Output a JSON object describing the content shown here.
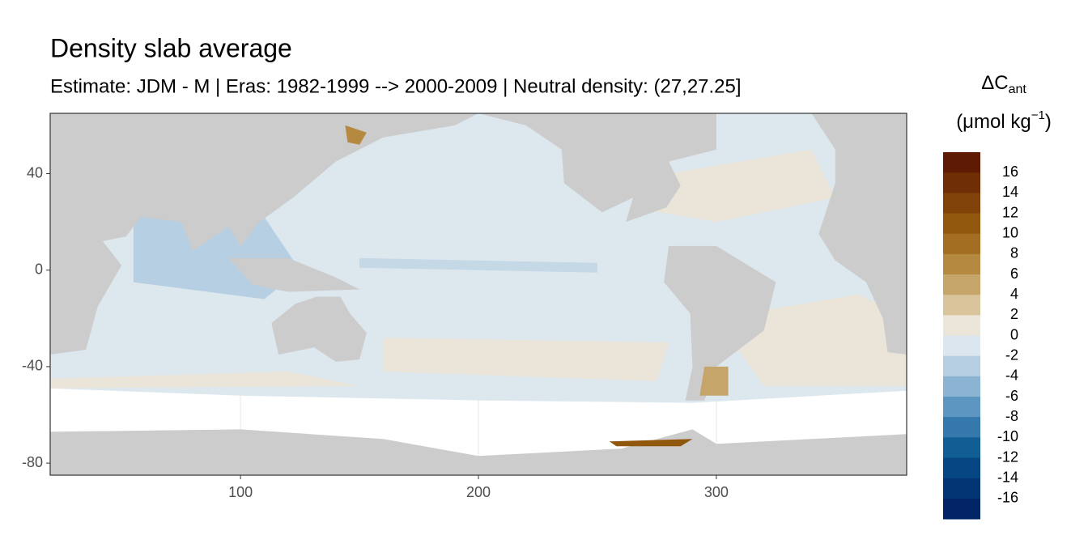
{
  "chart_data": {
    "type": "map",
    "title": "Density slab average",
    "subtitle": "Estimate: JDM - M | Eras: 1982-1999 --> 2000-2009 | Neutral density: (27,27.25]",
    "xlim": [
      20,
      380
    ],
    "xticks": [
      100,
      200,
      300
    ],
    "ylim": [
      -85,
      65
    ],
    "yticks": [
      -80,
      -40,
      0,
      40
    ],
    "grid": true,
    "land_color": "#cccccc",
    "legend": {
      "title": "ΔC",
      "title_sub": "ant",
      "unit": "(μmol kg",
      "unit_sup": "−1",
      "unit_close": ")",
      "bins": [
        18,
        16,
        14,
        12,
        10,
        8,
        6,
        4,
        2,
        0,
        -2,
        -4,
        -6,
        -8,
        -10,
        -12,
        -14,
        -16,
        -18
      ],
      "colors": [
        "#5e1a03",
        "#6f2e05",
        "#804208",
        "#91580d",
        "#a36e22",
        "#b5893f",
        "#c6a56a",
        "#d9c49c",
        "#ece5d9",
        "#dbe6ee",
        "#b6cfe2",
        "#8ab4d1",
        "#5d96c0",
        "#3578ab",
        "#105e94",
        "#064683",
        "#033575",
        "#012466"
      ],
      "breaks": [
        16,
        14,
        12,
        10,
        8,
        6,
        4,
        2,
        0,
        -2,
        -4,
        -6,
        -8,
        -10,
        -12,
        -14,
        -16
      ]
    }
  }
}
